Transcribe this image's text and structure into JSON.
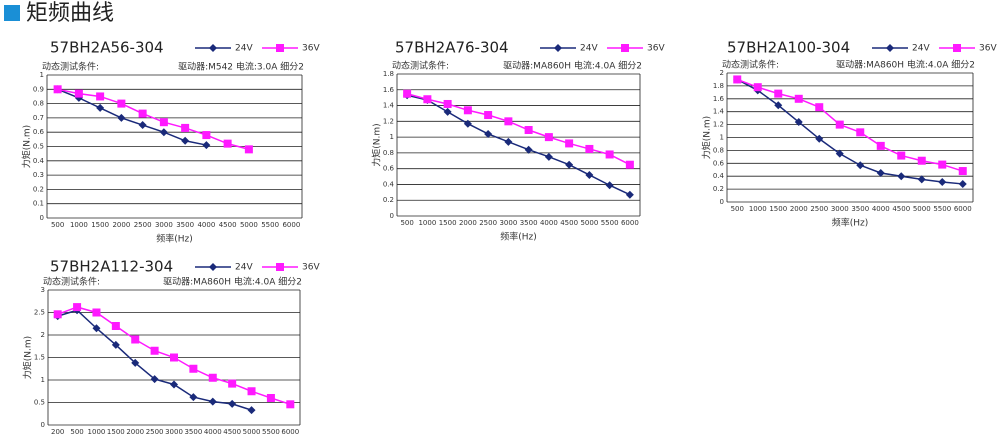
{
  "heading": "矩频曲线",
  "chart_data": [
    {
      "type": "line",
      "title": "57BH2A56-304",
      "subtitle_left": "动态测试条件:",
      "subtitle_right": "驱动器:M542  电流:3.0A  细分2",
      "y_label": "力矩(N.m)",
      "x_label": "频率(Hz)",
      "categories": [
        "500",
        "1000",
        "1500",
        "2000",
        "2500",
        "3000",
        "3500",
        "4000",
        "4500",
        "5000",
        "5500",
        "6000"
      ],
      "series": [
        {
          "name": "24V",
          "color": "#1a2a7a",
          "marker": "diamond",
          "values": [
            0.9,
            0.84,
            0.77,
            0.7,
            0.65,
            0.6,
            0.54,
            0.51,
            null,
            null,
            null,
            null
          ]
        },
        {
          "name": "36V",
          "color": "#ff19ff",
          "marker": "square",
          "values": [
            0.9,
            0.87,
            0.85,
            0.8,
            0.73,
            0.67,
            0.63,
            0.58,
            0.52,
            0.48,
            null,
            null
          ]
        }
      ],
      "ylim": [
        0,
        1
      ],
      "yticks": [
        0,
        0.1,
        0.2,
        0.3,
        0.4,
        0.5,
        0.6,
        0.7,
        0.8,
        0.9,
        1
      ],
      "grid": true
    },
    {
      "type": "line",
      "title": "57BH2A76-304",
      "subtitle_left": "动态测试条件:",
      "subtitle_right": "驱动器:MA860H  电流:4.0A  细分2",
      "y_label": "力矩(N.m)",
      "x_label": "频率(Hz)",
      "categories": [
        "500",
        "1000",
        "1500",
        "2000",
        "2500",
        "3000",
        "3500",
        "4000",
        "4500",
        "5000",
        "5500",
        "6000"
      ],
      "series": [
        {
          "name": "24V",
          "color": "#1a2a7a",
          "marker": "diamond",
          "values": [
            1.53,
            1.47,
            1.32,
            1.17,
            1.04,
            0.94,
            0.84,
            0.75,
            0.65,
            0.52,
            0.39,
            0.27
          ]
        },
        {
          "name": "36V",
          "color": "#ff19ff",
          "marker": "square",
          "values": [
            1.55,
            1.48,
            1.42,
            1.34,
            1.28,
            1.2,
            1.09,
            1.0,
            0.92,
            0.85,
            0.78,
            0.65
          ]
        }
      ],
      "ylim": [
        0,
        1.8
      ],
      "yticks": [
        0,
        0.2,
        0.4,
        0.6,
        0.8,
        1,
        1.2,
        1.4,
        1.6,
        1.8
      ],
      "grid": true
    },
    {
      "type": "line",
      "title": "57BH2A100-304",
      "subtitle_left": "动态测试条件:",
      "subtitle_right": "驱动器:MA860H  电流:4.0A  细分2",
      "y_label": "力矩(N.m)",
      "x_label": "频率(Hz)",
      "categories": [
        "500",
        "1000",
        "1500",
        "2000",
        "2500",
        "3000",
        "3500",
        "4000",
        "4500",
        "5000",
        "5500",
        "6000"
      ],
      "series": [
        {
          "name": "24V",
          "color": "#1a2a7a",
          "marker": "diamond",
          "values": [
            1.9,
            1.73,
            1.5,
            1.24,
            0.98,
            0.75,
            0.57,
            0.45,
            0.4,
            0.35,
            0.31,
            0.28
          ]
        },
        {
          "name": "36V",
          "color": "#ff19ff",
          "marker": "square",
          "values": [
            1.9,
            1.78,
            1.68,
            1.6,
            1.47,
            1.2,
            1.08,
            0.87,
            0.72,
            0.64,
            0.58,
            0.48
          ]
        }
      ],
      "ylim": [
        0,
        2
      ],
      "yticks": [
        0,
        0.2,
        0.4,
        0.6,
        0.8,
        1,
        1.2,
        1.4,
        1.6,
        1.8,
        2
      ],
      "grid": true
    },
    {
      "type": "line",
      "title": "57BH2A112-304",
      "subtitle_left": "动态测试条件:",
      "subtitle_right": "驱动器:MA860H  电流:4.0A  细分2",
      "y_label": "力矩(N.m)",
      "x_label": null,
      "categories": [
        "200",
        "500",
        "1000",
        "1500",
        "2000",
        "2500",
        "3000",
        "3500",
        "4000",
        "4500",
        "5000",
        "5500",
        "6000"
      ],
      "series": [
        {
          "name": "24V",
          "color": "#1a2a7a",
          "marker": "diamond",
          "values": [
            2.42,
            2.55,
            2.15,
            1.78,
            1.38,
            1.02,
            0.9,
            0.62,
            0.52,
            0.47,
            0.33,
            null,
            null
          ]
        },
        {
          "name": "36V",
          "color": "#ff19ff",
          "marker": "square",
          "values": [
            2.46,
            2.62,
            2.5,
            2.2,
            1.9,
            1.65,
            1.5,
            1.25,
            1.05,
            0.92,
            0.75,
            0.6,
            0.46
          ]
        }
      ],
      "ylim": [
        0,
        3
      ],
      "yticks": [
        0,
        0.5,
        1,
        1.5,
        2,
        2.5,
        3
      ],
      "grid": true
    }
  ]
}
